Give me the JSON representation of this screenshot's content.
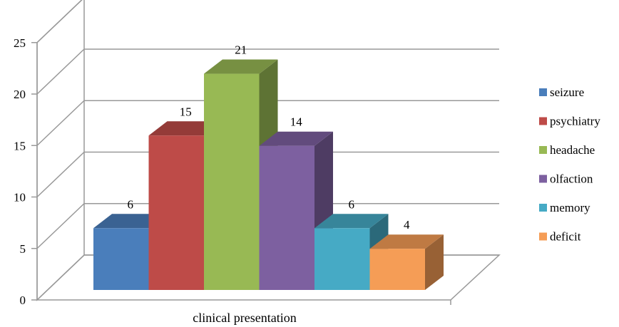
{
  "chart_data": {
    "type": "bar",
    "style": "3d-clustered",
    "categories": [
      "clinical presentation"
    ],
    "xlabel": "clinical presentation",
    "ylim": [
      0,
      25
    ],
    "yticks": [
      0,
      5,
      10,
      15,
      20,
      25
    ],
    "grid": true,
    "legend_position": "right",
    "series": [
      {
        "name": "seizure",
        "value": 6,
        "color": "#4a7ebb"
      },
      {
        "name": "psychiatry",
        "value": 15,
        "color": "#be4b48"
      },
      {
        "name": "headache",
        "value": 21,
        "color": "#98b954"
      },
      {
        "name": "olfaction",
        "value": 14,
        "color": "#7d60a0"
      },
      {
        "name": "memory",
        "value": 6,
        "color": "#46aac5"
      },
      {
        "name": "deficit",
        "value": 4,
        "color": "#f59d56"
      }
    ]
  }
}
